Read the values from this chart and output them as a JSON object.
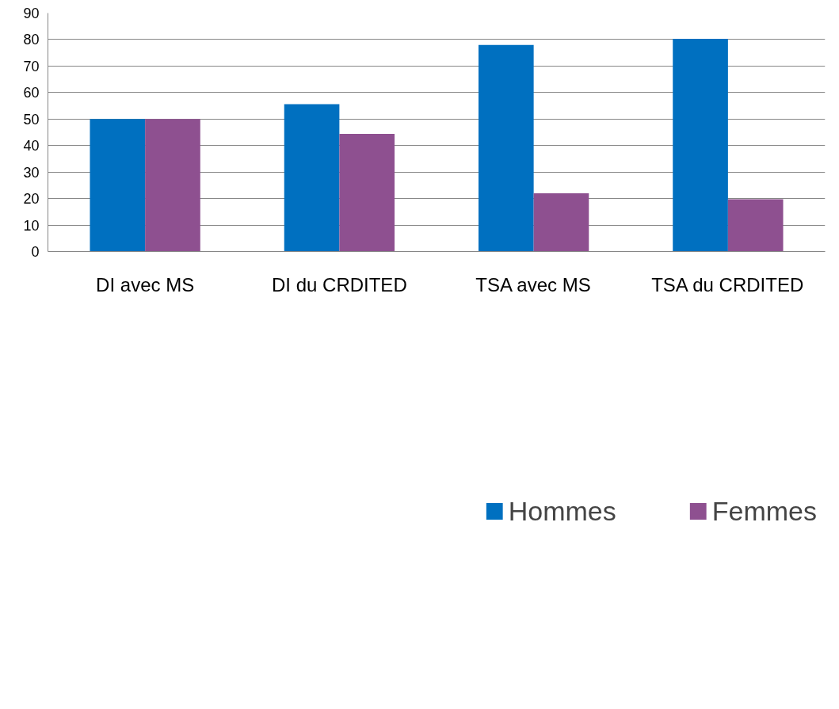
{
  "chart_data": {
    "type": "bar",
    "categories": [
      "DI avec MS",
      "DI du CRDITED",
      "TSA avec MS",
      "TSA du CRDITED"
    ],
    "series": [
      {
        "name": "Hommes",
        "color": "#0070c0",
        "values": [
          50,
          55.6,
          78,
          80.3
        ]
      },
      {
        "name": "Femmes",
        "color": "#8e5090",
        "values": [
          50,
          44.4,
          22,
          19.7
        ]
      }
    ],
    "ylim": [
      0,
      90
    ],
    "yticks": [
      0,
      10,
      20,
      30,
      40,
      50,
      60,
      70,
      80,
      90
    ],
    "grid": "y",
    "legend": "bottom"
  }
}
